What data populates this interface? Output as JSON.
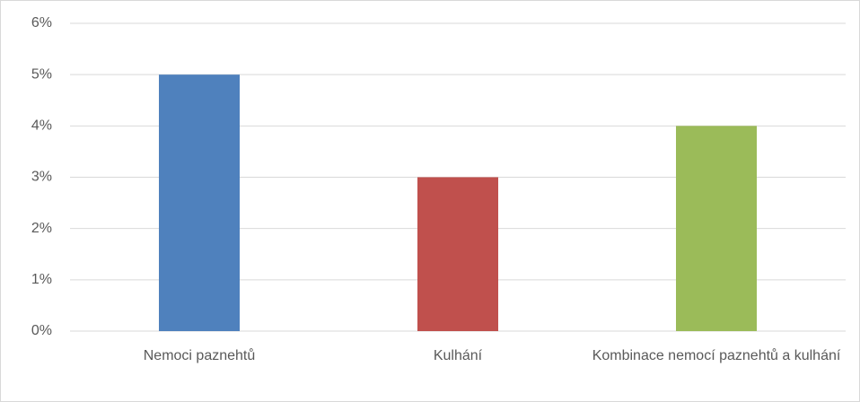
{
  "chart_data": {
    "type": "bar",
    "categories": [
      "Nemoci paznehtů",
      "Kulhání",
      "Kombinace nemocí paznehtů a kulhání"
    ],
    "values": [
      5,
      3,
      4
    ],
    "colors": [
      "#4f81bd",
      "#c0504d",
      "#9bbb59"
    ],
    "ylim": [
      0,
      6
    ],
    "yticks": [
      {
        "value": 0,
        "label": "0%"
      },
      {
        "value": 1,
        "label": "1%"
      },
      {
        "value": 2,
        "label": "2%"
      },
      {
        "value": 3,
        "label": "3%"
      },
      {
        "value": 4,
        "label": "4%"
      },
      {
        "value": 5,
        "label": "5%"
      },
      {
        "value": 6,
        "label": "6%"
      }
    ],
    "grid": true
  }
}
